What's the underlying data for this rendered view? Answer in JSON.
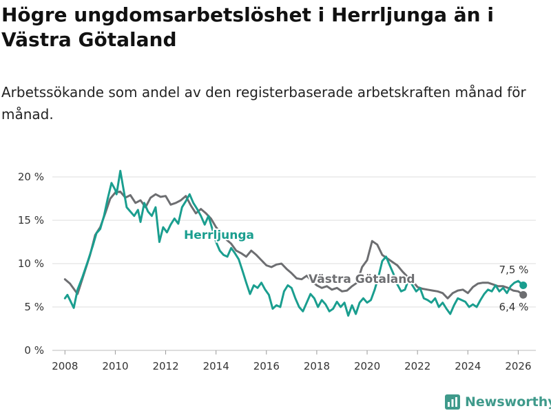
{
  "title": "Högre ungdomsarbetslöshet i Herrljunga än i Västra Götaland",
  "subtitle": "Arbetssökande som andel av den registerbaserade arbetskraften månad för månad.",
  "brand": "Newsworthy",
  "colors": {
    "herrljunga": "#1a9e8f",
    "vastra": "#6d6e71",
    "grid": "#dcdcdc"
  },
  "chart_data": {
    "type": "line",
    "title": "Högre ungdomsarbetslöshet i Herrljunga än i Västra Götaland",
    "xlabel": "",
    "ylabel": "",
    "xlim": [
      2007.5,
      2026.7
    ],
    "ylim": [
      0,
      20
    ],
    "y_ticks": [
      0,
      5,
      10,
      15,
      20
    ],
    "y_tick_labels": [
      "0 %",
      "5 %",
      "10 %",
      "15 %",
      "20 %"
    ],
    "x_ticks": [
      2008,
      2010,
      2012,
      2014,
      2016,
      2018,
      2020,
      2022,
      2024,
      2026
    ],
    "x_tick_labels": [
      "2008",
      "2010",
      "2012",
      "2014",
      "2016",
      "2018",
      "2020",
      "2022",
      "2024",
      "2026"
    ],
    "grid": true,
    "series": [
      {
        "name": "Västra Götaland",
        "label": "Västra Götaland",
        "end_label": "6,4 %",
        "x": [
          2008.0,
          2008.2,
          2008.5,
          2008.8,
          2009.0,
          2009.2,
          2009.4,
          2009.6,
          2009.8,
          2010.0,
          2010.2,
          2010.4,
          2010.6,
          2010.8,
          2011.0,
          2011.2,
          2011.4,
          2011.6,
          2011.8,
          2012.0,
          2012.2,
          2012.4,
          2012.6,
          2012.8,
          2013.0,
          2013.2,
          2013.4,
          2013.6,
          2013.8,
          2014.0,
          2014.2,
          2014.4,
          2014.6,
          2014.8,
          2015.0,
          2015.2,
          2015.4,
          2015.6,
          2015.8,
          2016.0,
          2016.2,
          2016.4,
          2016.6,
          2016.8,
          2017.0,
          2017.2,
          2017.4,
          2017.6,
          2017.8,
          2018.0,
          2018.2,
          2018.4,
          2018.6,
          2018.8,
          2019.0,
          2019.2,
          2019.4,
          2019.6,
          2019.8,
          2020.0,
          2020.2,
          2020.4,
          2020.6,
          2020.8,
          2021.0,
          2021.2,
          2021.4,
          2021.6,
          2021.8,
          2022.0,
          2022.2,
          2022.4,
          2022.6,
          2022.8,
          2023.0,
          2023.2,
          2023.4,
          2023.6,
          2023.8,
          2024.0,
          2024.2,
          2024.4,
          2024.6,
          2024.8,
          2025.0,
          2025.2,
          2025.4,
          2025.6,
          2025.8,
          2026.0,
          2026.2
        ],
        "values": [
          8.2,
          7.7,
          6.5,
          9.2,
          11.0,
          13.3,
          14.2,
          15.8,
          17.5,
          18.2,
          18.3,
          17.6,
          17.9,
          17.0,
          17.3,
          16.5,
          17.6,
          18.0,
          17.7,
          17.8,
          16.8,
          17.0,
          17.3,
          17.8,
          16.7,
          15.8,
          16.3,
          15.8,
          15.2,
          14.2,
          13.5,
          12.8,
          12.3,
          11.5,
          11.2,
          10.8,
          11.5,
          11.0,
          10.4,
          9.8,
          9.6,
          9.9,
          10.0,
          9.4,
          8.9,
          8.3,
          8.2,
          8.6,
          8.0,
          7.5,
          7.2,
          7.4,
          7.0,
          7.2,
          6.8,
          6.9,
          7.4,
          7.8,
          9.6,
          10.4,
          12.6,
          12.2,
          11.0,
          10.6,
          10.2,
          9.8,
          9.1,
          8.5,
          8.0,
          7.3,
          7.1,
          7.0,
          6.9,
          6.8,
          6.6,
          6.0,
          6.6,
          6.9,
          7.0,
          6.6,
          7.3,
          7.7,
          7.8,
          7.8,
          7.6,
          7.4,
          7.4,
          7.2,
          6.9,
          6.8,
          6.4
        ]
      },
      {
        "name": "Herrljunga",
        "label": "Herrljunga",
        "end_label": "7,5 %",
        "x": [
          2008.0,
          2008.1,
          2008.2,
          2008.35,
          2008.5,
          2008.7,
          2008.9,
          2009.1,
          2009.25,
          2009.4,
          2009.55,
          2009.7,
          2009.85,
          2010.0,
          2010.05,
          2010.2,
          2010.3,
          2010.45,
          2010.6,
          2010.75,
          2010.9,
          2011.0,
          2011.15,
          2011.3,
          2011.45,
          2011.6,
          2011.75,
          2011.9,
          2012.05,
          2012.2,
          2012.35,
          2012.5,
          2012.65,
          2012.8,
          2012.95,
          2013.1,
          2013.25,
          2013.4,
          2013.55,
          2013.7,
          2013.85,
          2014.0,
          2014.15,
          2014.3,
          2014.45,
          2014.6,
          2014.75,
          2014.9,
          2015.05,
          2015.2,
          2015.35,
          2015.5,
          2015.65,
          2015.8,
          2015.95,
          2016.1,
          2016.25,
          2016.4,
          2016.55,
          2016.7,
          2016.85,
          2017.0,
          2017.15,
          2017.3,
          2017.45,
          2017.6,
          2017.75,
          2017.9,
          2018.05,
          2018.2,
          2018.35,
          2018.5,
          2018.65,
          2018.8,
          2018.95,
          2019.1,
          2019.25,
          2019.4,
          2019.55,
          2019.7,
          2019.85,
          2020.0,
          2020.15,
          2020.3,
          2020.45,
          2020.6,
          2020.75,
          2020.9,
          2021.05,
          2021.2,
          2021.35,
          2021.5,
          2021.65,
          2021.8,
          2021.95,
          2022.1,
          2022.25,
          2022.4,
          2022.55,
          2022.7,
          2022.85,
          2023.0,
          2023.15,
          2023.3,
          2023.45,
          2023.6,
          2023.75,
          2023.9,
          2024.05,
          2024.2,
          2024.35,
          2024.5,
          2024.65,
          2024.8,
          2024.95,
          2025.1,
          2025.25,
          2025.4,
          2025.55,
          2025.7,
          2025.85,
          2026.0,
          2026.2
        ],
        "values": [
          6.0,
          6.4,
          5.8,
          4.9,
          7.0,
          8.5,
          10.2,
          12.0,
          13.5,
          14.0,
          15.5,
          17.5,
          19.3,
          18.5,
          18.0,
          20.7,
          19.0,
          16.5,
          16.0,
          15.5,
          16.2,
          14.8,
          17.0,
          16.0,
          15.5,
          16.5,
          12.5,
          14.2,
          13.6,
          14.5,
          15.2,
          14.6,
          16.5,
          17.2,
          18.0,
          17.0,
          16.3,
          15.5,
          14.5,
          15.5,
          14.0,
          12.5,
          11.5,
          11.0,
          10.8,
          11.8,
          11.2,
          10.5,
          9.2,
          7.8,
          6.5,
          7.5,
          7.2,
          7.8,
          7.0,
          6.4,
          4.8,
          5.2,
          5.0,
          6.8,
          7.5,
          7.2,
          6.0,
          5.0,
          4.5,
          5.5,
          6.5,
          6.0,
          5.0,
          5.8,
          5.3,
          4.5,
          4.8,
          5.6,
          5.0,
          5.5,
          4.0,
          5.2,
          4.2,
          5.5,
          6.0,
          5.5,
          5.8,
          7.0,
          8.5,
          10.3,
          10.8,
          9.8,
          8.8,
          7.6,
          6.8,
          7.0,
          8.2,
          7.5,
          6.8,
          7.2,
          6.0,
          5.8,
          5.5,
          6.0,
          5.0,
          5.5,
          4.8,
          4.2,
          5.2,
          6.0,
          5.8,
          5.6,
          5.0,
          5.3,
          5.0,
          5.8,
          6.5,
          7.0,
          6.8,
          7.5,
          6.8,
          7.2,
          6.6,
          7.4,
          7.8,
          8.0,
          7.5
        ]
      }
    ]
  }
}
